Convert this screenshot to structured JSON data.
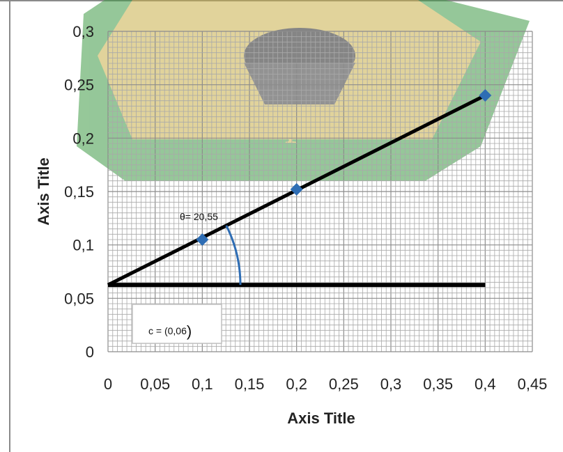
{
  "chart_data": {
    "type": "scatter",
    "title": "",
    "xlabel": "Axis Title",
    "ylabel": "Axis Title",
    "xlim": [
      0,
      0.45
    ],
    "ylim": [
      0,
      0.3
    ],
    "x_ticks": [
      "0",
      "0,05",
      "0,1",
      "0,15",
      "0,2",
      "0,25",
      "0,3",
      "0,35",
      "0,4",
      "0,45"
    ],
    "y_ticks": [
      "0",
      "0,05",
      "0,1",
      "0,15",
      "0,2",
      "0,25",
      "0,3"
    ],
    "grid": true,
    "series": [
      {
        "points": [
          {
            "x": 0.1,
            "y": 0.105
          },
          {
            "x": 0.2,
            "y": 0.152
          },
          {
            "x": 0.4,
            "y": 0.24
          }
        ],
        "marker": "diamond",
        "color": "#2e6db4"
      }
    ],
    "trendline": {
      "x": [
        0,
        0.4
      ],
      "y": [
        0.0625,
        0.24
      ],
      "color": "#000000"
    },
    "baseline": {
      "x": [
        0,
        0.4
      ],
      "y": [
        0.0625,
        0.0625
      ],
      "color": "#000000"
    },
    "annotations": {
      "angle": "θ= 20,55",
      "intercept_prefix": "c = (0,06",
      "intercept_suffix": ")"
    },
    "arc_color": "#2e6db4"
  }
}
